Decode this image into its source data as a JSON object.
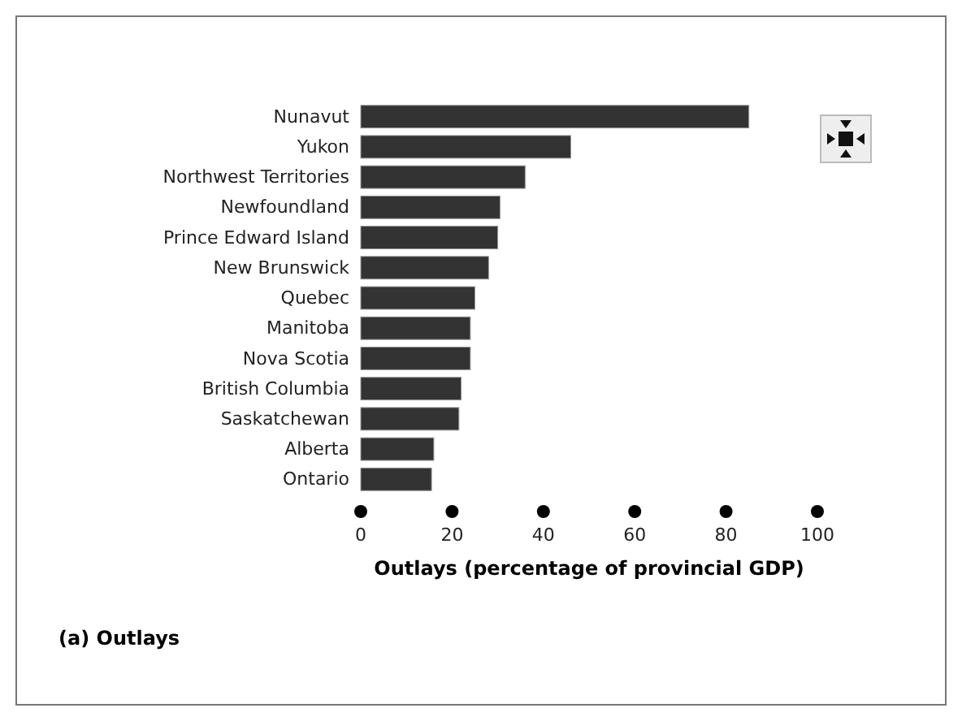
{
  "chart_data": {
    "type": "bar",
    "orientation": "horizontal",
    "xlabel": "Outlays (percentage of provincial GDP)",
    "categories": [
      "Nunavut",
      "Yukon",
      "Northwest Territories",
      "Newfoundland",
      "Prince Edward Island",
      "New Brunswick",
      "Quebec",
      "Manitoba",
      "Nova Scotia",
      "British Columbia",
      "Saskatchewan",
      "Alberta",
      "Ontario"
    ],
    "values": [
      85,
      46,
      36,
      30.5,
      30,
      28,
      25,
      24,
      24,
      22,
      21.5,
      16,
      15.5
    ],
    "color": "#333333",
    "xlim": [
      0,
      100
    ],
    "xticks": [
      0,
      20,
      40,
      60,
      80,
      100
    ],
    "grid": false,
    "annotations": [
      "(a) Outlays"
    ]
  }
}
